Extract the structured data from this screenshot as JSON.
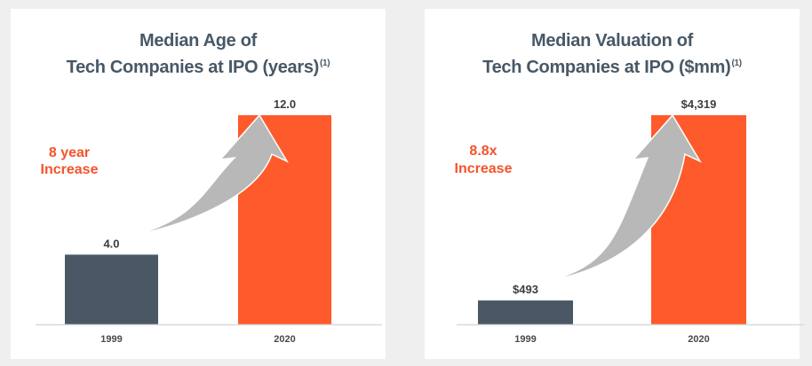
{
  "colors": {
    "background": "#efefef",
    "panel": "#ffffff",
    "title": "#485866",
    "bar_1999": "#4a5866",
    "bar_2020": "#ff5a2b",
    "annotation": "#f4532b",
    "arrow": "#b8b8b8",
    "axis": "#d9d9d9"
  },
  "chart_data": [
    {
      "type": "bar",
      "title_line1": "Median Age of",
      "title_line2": "Tech Companies at IPO (years)",
      "title_footnote": "(1)",
      "categories": [
        "1999",
        "2020"
      ],
      "values": [
        4.0,
        12.0
      ],
      "value_labels": [
        "4.0",
        "12.0"
      ],
      "annotation_line1": "8 year",
      "annotation_line2": "Increase",
      "xlabel": "",
      "ylabel": "",
      "ylim": [
        0,
        12.0
      ],
      "grid": false,
      "legend": "none"
    },
    {
      "type": "bar",
      "title_line1": "Median Valuation of",
      "title_line2": "Tech Companies at IPO ($mm)",
      "title_footnote": "(1)",
      "categories": [
        "1999",
        "2020"
      ],
      "values": [
        493,
        4319
      ],
      "value_labels": [
        "$493",
        "$4,319"
      ],
      "annotation_line1": "8.8x",
      "annotation_line2": "Increase",
      "xlabel": "",
      "ylabel": "",
      "ylim": [
        0,
        4319
      ],
      "grid": false,
      "legend": "none"
    }
  ]
}
